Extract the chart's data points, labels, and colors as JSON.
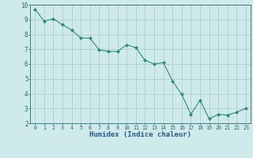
{
  "x": [
    0,
    1,
    2,
    3,
    4,
    5,
    6,
    7,
    8,
    9,
    10,
    11,
    12,
    13,
    14,
    15,
    16,
    17,
    18,
    19,
    20,
    21,
    22,
    23
  ],
  "y": [
    9.7,
    8.9,
    9.05,
    8.65,
    8.3,
    7.75,
    7.75,
    6.95,
    6.85,
    6.85,
    7.3,
    7.1,
    6.25,
    6.0,
    6.1,
    4.85,
    3.95,
    2.6,
    3.55,
    2.3,
    2.6,
    2.55,
    2.75,
    3.0
  ],
  "xlabel": "Humidex (Indice chaleur)",
  "ylim": [
    2,
    10
  ],
  "xlim": [
    -0.5,
    23.5
  ],
  "yticks": [
    2,
    3,
    4,
    5,
    6,
    7,
    8,
    9,
    10
  ],
  "xticks": [
    0,
    1,
    2,
    3,
    4,
    5,
    6,
    7,
    8,
    9,
    10,
    11,
    12,
    13,
    14,
    15,
    16,
    17,
    18,
    19,
    20,
    21,
    22,
    23
  ],
  "line_color": "#2d8b7a",
  "marker": "D",
  "marker_size": 2.0,
  "bg_color": "#ceeaea",
  "grid_color": "#aac8c8",
  "xlabel_color": "#2a5a8a",
  "tick_color": "#2a6a6a",
  "xlabel_fontsize": 6.5,
  "xtick_fontsize": 4.8,
  "ytick_fontsize": 5.5
}
